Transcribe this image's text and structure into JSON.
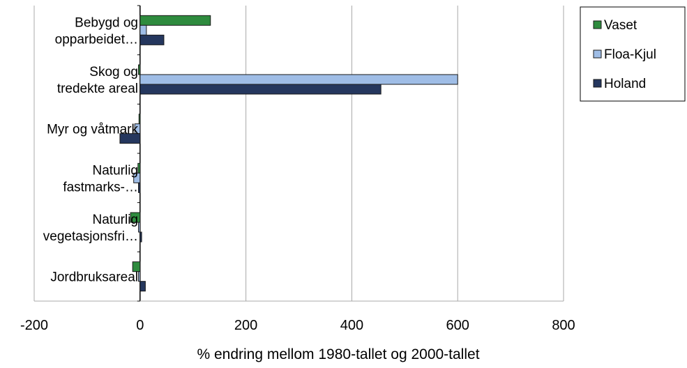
{
  "chart_data": {
    "type": "bar",
    "orientation": "horizontal",
    "categories": [
      [
        "Bebygd og",
        "opparbeidet…"
      ],
      [
        "Skog og",
        "tredekte areal"
      ],
      [
        "Myr og våtmark"
      ],
      [
        "Naturlig",
        "fastmarks-…"
      ],
      [
        "Naturlig",
        "vegetasjonsfri…"
      ],
      [
        "Jordbruksareal"
      ]
    ],
    "series": [
      {
        "name": "Vaset",
        "color": "#2e8b3e",
        "values": [
          133,
          -3,
          -2,
          -4,
          -18,
          -14
        ]
      },
      {
        "name": "Floa-Kjul",
        "color": "#9fbde6",
        "values": [
          12,
          600,
          -10,
          -12,
          -3,
          -3
        ]
      },
      {
        "name": "Holand",
        "color": "#25375e",
        "values": [
          45,
          455,
          -38,
          -3,
          3,
          10
        ]
      }
    ],
    "xlabel": "% endring mellom 1980-tallet og 2000-tallet",
    "xlim": [
      -200,
      800
    ],
    "xticks": [
      "-200",
      "0",
      "200",
      "400",
      "600",
      "800"
    ],
    "grid": true,
    "legend": "right"
  }
}
